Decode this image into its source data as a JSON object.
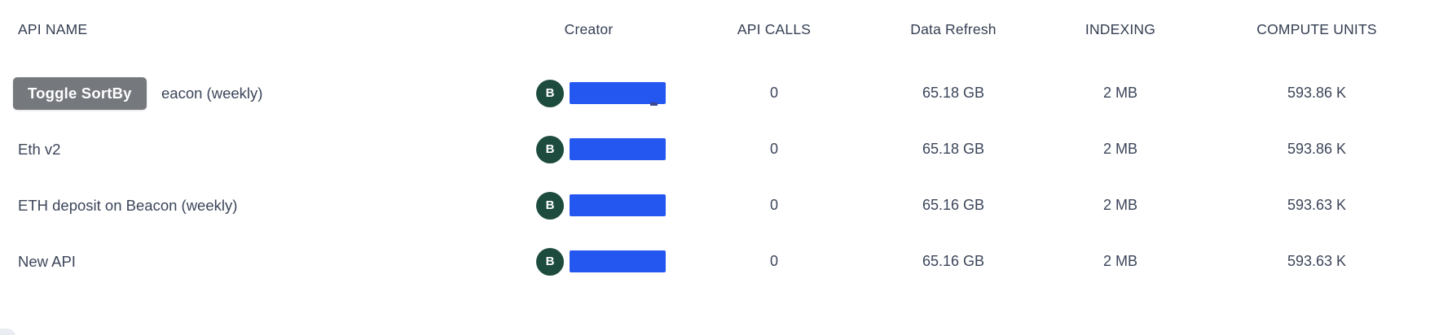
{
  "tooltip": {
    "label": "Toggle SortBy"
  },
  "table": {
    "columns": [
      {
        "label": "API NAME"
      },
      {
        "label": "Creator"
      },
      {
        "label": "API CALLS"
      },
      {
        "label": "Data Refresh"
      },
      {
        "label": "INDEXING"
      },
      {
        "label": "COMPUTE UNITS"
      }
    ],
    "rows": [
      {
        "name": "eacon (weekly)",
        "creator_initial": "B",
        "api_calls": "0",
        "data_refresh": "65.18 GB",
        "indexing": "2 MB",
        "compute_units": "593.86 K"
      },
      {
        "name": "Eth v2",
        "creator_initial": "B",
        "api_calls": "0",
        "data_refresh": "65.18 GB",
        "indexing": "2 MB",
        "compute_units": "593.86 K"
      },
      {
        "name": "ETH deposit on Beacon (weekly)",
        "creator_initial": "B",
        "api_calls": "0",
        "data_refresh": "65.16 GB",
        "indexing": "2 MB",
        "compute_units": "593.63 K"
      },
      {
        "name": "New API",
        "creator_initial": "B",
        "api_calls": "0",
        "data_refresh": "65.16 GB",
        "indexing": "2 MB",
        "compute_units": "593.63 K"
      }
    ]
  },
  "colors": {
    "accent_blue": "#2456f0",
    "avatar_green": "#1d4b3e",
    "tooltip_gray": "#75797e",
    "text_dark": "#3b4559"
  }
}
